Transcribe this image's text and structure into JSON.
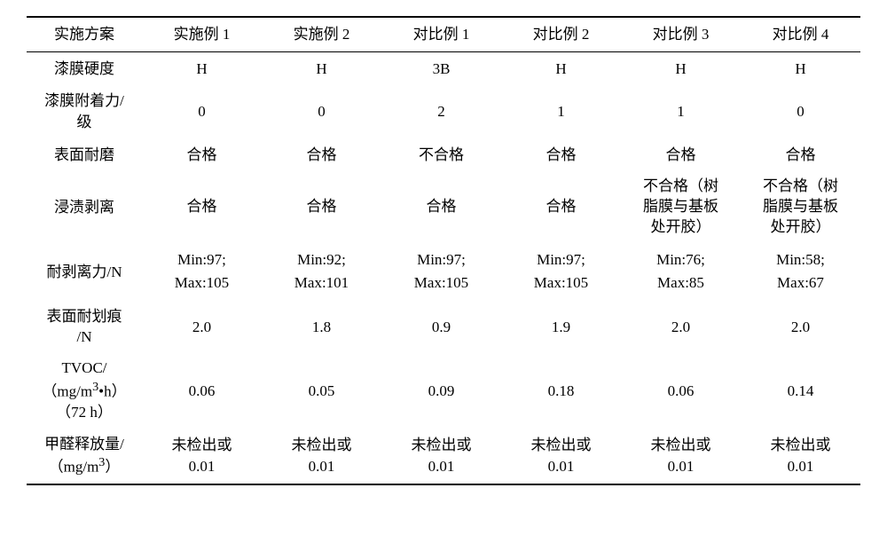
{
  "table": {
    "header": [
      "实施方案",
      "实施例 1",
      "实施例 2",
      "对比例 1",
      "对比例 2",
      "对比例 3",
      "对比例 4"
    ],
    "rows": [
      {
        "label": "漆膜硬度",
        "labelClass": "",
        "cells": [
          "H",
          "H",
          "3B",
          "H",
          "H",
          "H"
        ],
        "cellHtml": false
      },
      {
        "label": "漆膜附着力/<br>级",
        "labelClass": "twoline",
        "cells": [
          "0",
          "0",
          "2",
          "1",
          "1",
          "0"
        ],
        "cellHtml": false
      },
      {
        "label": "表面耐磨",
        "labelClass": "",
        "cells": [
          "合格",
          "合格",
          "不合格",
          "合格",
          "合格",
          "合格"
        ],
        "cellHtml": false
      },
      {
        "label": "浸渍剥离",
        "labelClass": "",
        "cells": [
          "合格",
          "合格",
          "合格",
          "合格",
          "不合格（树<br>脂膜与基板<br>处开胶）",
          "不合格（树<br>脂膜与基板<br>处开胶）"
        ],
        "cellHtml": true,
        "cellClass": "threeline"
      },
      {
        "label": "耐剥离力/N",
        "labelClass": "",
        "cells": [
          "Min:97;<br>Max:105",
          "Min:92;<br>Max:101",
          "Min:97;<br>Max:105",
          "Min:97;<br>Max:105",
          "Min:76;<br>Max:85",
          "Min:58;<br>Max:67"
        ],
        "cellHtml": true,
        "cellClass": "minmax"
      },
      {
        "label": "表面耐划痕<br>/N",
        "labelClass": "twoline",
        "cells": [
          "2.0",
          "1.8",
          "0.9",
          "1.9",
          "2.0",
          "2.0"
        ],
        "cellHtml": false
      },
      {
        "label": "TVOC/<br>（mg/m<sup>3</sup>•h）<br>（72 h）",
        "labelClass": "threeline",
        "cells": [
          "0.06",
          "0.05",
          "0.09",
          "0.18",
          "0.06",
          "0.14"
        ],
        "cellHtml": false
      },
      {
        "label": "甲醛释放量/<br>（mg/m<sup>3</sup>）",
        "labelClass": "twoline",
        "cells": [
          "未检出或<br>0.01",
          "未检出或<br>0.01",
          "未检出或<br>0.01",
          "未检出或<br>0.01",
          "未检出或<br>0.01",
          "未检出或<br>0.01"
        ],
        "cellHtml": true,
        "cellClass": "twoline"
      }
    ]
  },
  "colors": {
    "bg": "#ffffff",
    "text": "#000000",
    "border": "#000000"
  }
}
